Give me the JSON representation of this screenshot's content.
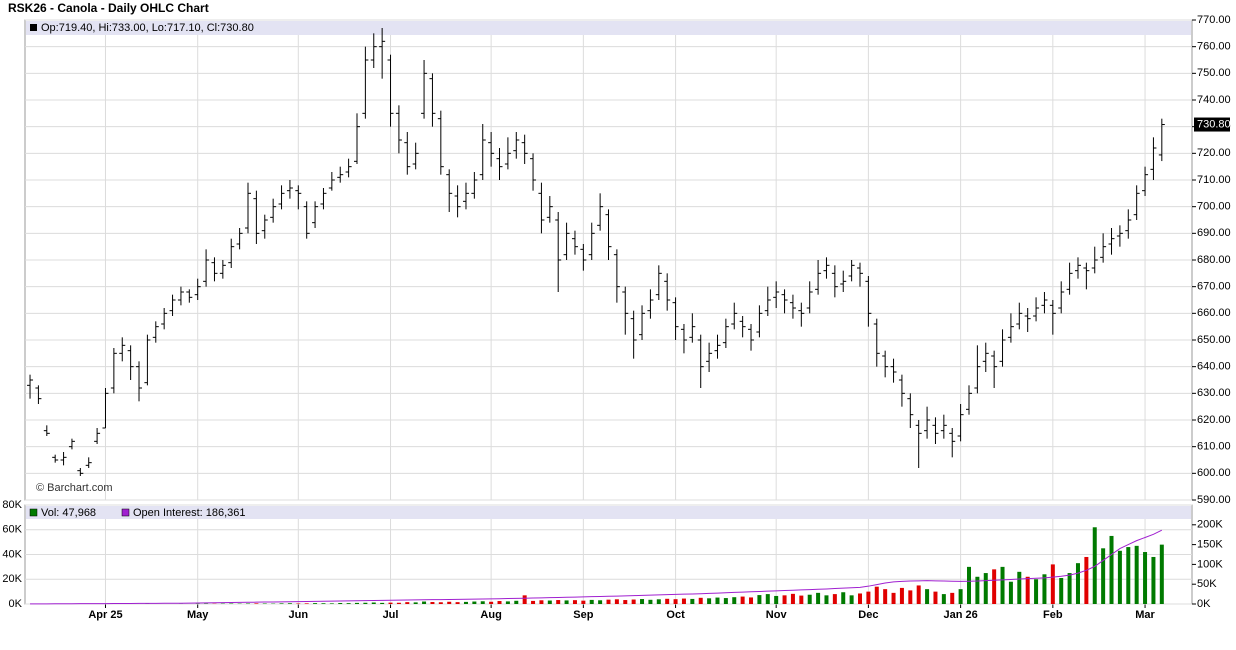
{
  "chart_data": [
    {
      "type": "ohlc",
      "title": "RSK26 - Canola - Daily OHLC Chart",
      "legend": "Op:719.40, Hi:733.00, Lo:717.10, Cl:730.80",
      "watermark": "© Barchart.com",
      "color": "#000000",
      "grid": true,
      "ylim": [
        590,
        770
      ],
      "yticks": [
        {
          "value": 590,
          "label": "590.00"
        },
        {
          "value": 600,
          "label": "600.00"
        },
        {
          "value": 610,
          "label": "610.00"
        },
        {
          "value": 620,
          "label": "620.00"
        },
        {
          "value": 630,
          "label": "630.00"
        },
        {
          "value": 640,
          "label": "640.00"
        },
        {
          "value": 650,
          "label": "650.00"
        },
        {
          "value": 660,
          "label": "660.00"
        },
        {
          "value": 670,
          "label": "670.00"
        },
        {
          "value": 680,
          "label": "680.00"
        },
        {
          "value": 690,
          "label": "690.00"
        },
        {
          "value": 700,
          "label": "700.00"
        },
        {
          "value": 710,
          "label": "710.00"
        },
        {
          "value": 720,
          "label": "720.00"
        },
        {
          "value": 730,
          "label": "730.00"
        },
        {
          "value": 740,
          "label": "740.00"
        },
        {
          "value": 750,
          "label": "750.00"
        },
        {
          "value": 760,
          "label": "760.00"
        },
        {
          "value": 770,
          "label": "770.00"
        }
      ],
      "last_price": {
        "value": 730.8,
        "label": "730.80"
      },
      "xlim": [
        -0.6,
        138.6
      ],
      "xticks": [
        {
          "value": 9,
          "label": "Apr 25"
        },
        {
          "value": 20,
          "label": "May"
        },
        {
          "value": 32,
          "label": "Jun"
        },
        {
          "value": 43,
          "label": "Jul"
        },
        {
          "value": 55,
          "label": "Aug"
        },
        {
          "value": 66,
          "label": "Sep"
        },
        {
          "value": 77,
          "label": "Oct"
        },
        {
          "value": 89,
          "label": "Nov"
        },
        {
          "value": 100,
          "label": "Dec"
        },
        {
          "value": 111,
          "label": "Jan 26"
        },
        {
          "value": 122,
          "label": "Feb"
        },
        {
          "value": 133,
          "label": "Mar"
        }
      ],
      "bars": [
        [
          633,
          637,
          628,
          635
        ],
        [
          632,
          633,
          626,
          628
        ],
        [
          616,
          618,
          614,
          615
        ],
        [
          606,
          607,
          604,
          605
        ],
        [
          605,
          608,
          603,
          606
        ],
        [
          610,
          613,
          609,
          612
        ],
        [
          601,
          602,
          599,
          600
        ],
        [
          603,
          606,
          602,
          604
        ],
        [
          612,
          617,
          611,
          615
        ],
        [
          617,
          632,
          617,
          630
        ],
        [
          632,
          647,
          630,
          645
        ],
        [
          645,
          651,
          642,
          648
        ],
        [
          646,
          648,
          635,
          640
        ],
        [
          640,
          642,
          627,
          632
        ],
        [
          634,
          652,
          633,
          650
        ],
        [
          651,
          657,
          649,
          655
        ],
        [
          656,
          662,
          654,
          660
        ],
        [
          661,
          667,
          659,
          665
        ],
        [
          665,
          670,
          663,
          668
        ],
        [
          668,
          669,
          664,
          666
        ],
        [
          667,
          673,
          665,
          670
        ],
        [
          672,
          684,
          670,
          680
        ],
        [
          679,
          681,
          672,
          675
        ],
        [
          675,
          680,
          673,
          678
        ],
        [
          679,
          688,
          677,
          685
        ],
        [
          686,
          692,
          684,
          690
        ],
        [
          692,
          709,
          690,
          705
        ],
        [
          703,
          706,
          686,
          690
        ],
        [
          691,
          697,
          688,
          695
        ],
        [
          696,
          703,
          694,
          700
        ],
        [
          701,
          708,
          699,
          705
        ],
        [
          706,
          710,
          703,
          707
        ],
        [
          706,
          708,
          699,
          705
        ],
        [
          700,
          702,
          688,
          690
        ],
        [
          694,
          702,
          692,
          700
        ],
        [
          701,
          707,
          699,
          705
        ],
        [
          707,
          713,
          706,
          710
        ],
        [
          711,
          715,
          709,
          712
        ],
        [
          713,
          718,
          711,
          715
        ],
        [
          717,
          735,
          716,
          730
        ],
        [
          735,
          760,
          733,
          755
        ],
        [
          755,
          765,
          752,
          760
        ],
        [
          760,
          767,
          748,
          762
        ],
        [
          755,
          757,
          730,
          735
        ],
        [
          735,
          738,
          720,
          725
        ],
        [
          724,
          728,
          712,
          715
        ],
        [
          716,
          724,
          714,
          720
        ],
        [
          735,
          755,
          733,
          750
        ],
        [
          748,
          750,
          730,
          735
        ],
        [
          733,
          736,
          712,
          715
        ],
        [
          712,
          714,
          698,
          705
        ],
        [
          704,
          708,
          696,
          700
        ],
        [
          702,
          709,
          699,
          705
        ],
        [
          705,
          713,
          703,
          710
        ],
        [
          712,
          731,
          710,
          725
        ],
        [
          724,
          728,
          715,
          720
        ],
        [
          718,
          722,
          710,
          715
        ],
        [
          716,
          726,
          714,
          720
        ],
        [
          721,
          728,
          718,
          725
        ],
        [
          724,
          727,
          716,
          720
        ],
        [
          718,
          720,
          706,
          710
        ],
        [
          705,
          709,
          690,
          695
        ],
        [
          696,
          704,
          694,
          700
        ],
        [
          695,
          698,
          668,
          680
        ],
        [
          682,
          694,
          680,
          690
        ],
        [
          688,
          691,
          682,
          685
        ],
        [
          684,
          686,
          676,
          680
        ],
        [
          682,
          694,
          680,
          690
        ],
        [
          693,
          705,
          691,
          700
        ],
        [
          697,
          699,
          680,
          685
        ],
        [
          682,
          684,
          664,
          670
        ],
        [
          668,
          670,
          652,
          660
        ],
        [
          658,
          661,
          643,
          650
        ],
        [
          652,
          663,
          650,
          660
        ],
        [
          661,
          669,
          658,
          665
        ],
        [
          667,
          678,
          665,
          675
        ],
        [
          672,
          675,
          661,
          665
        ],
        [
          664,
          666,
          650,
          655
        ],
        [
          654,
          656,
          645,
          650
        ],
        [
          651,
          660,
          649,
          655
        ],
        [
          650,
          652,
          632,
          640
        ],
        [
          642,
          649,
          638,
          645
        ],
        [
          646,
          652,
          643,
          648
        ],
        [
          649,
          658,
          647,
          655
        ],
        [
          656,
          664,
          654,
          660
        ],
        [
          657,
          659,
          651,
          655
        ],
        [
          654,
          656,
          646,
          650
        ],
        [
          653,
          663,
          651,
          660
        ],
        [
          661,
          670,
          659,
          665
        ],
        [
          666,
          672,
          662,
          668
        ],
        [
          667,
          669,
          660,
          665
        ],
        [
          664,
          667,
          658,
          662
        ],
        [
          661,
          664,
          655,
          660
        ],
        [
          662,
          672,
          660,
          668
        ],
        [
          669,
          680,
          667,
          675
        ],
        [
          676,
          681,
          673,
          678
        ],
        [
          675,
          678,
          666,
          670
        ],
        [
          671,
          676,
          668,
          672
        ],
        [
          674,
          680,
          672,
          678
        ],
        [
          677,
          679,
          670,
          675
        ],
        [
          672,
          674,
          655,
          660
        ],
        [
          656,
          658,
          640,
          645
        ],
        [
          644,
          646,
          636,
          640
        ],
        [
          640,
          643,
          634,
          638
        ],
        [
          635,
          637,
          625,
          630
        ],
        [
          628,
          630,
          617,
          622
        ],
        [
          618,
          620,
          602,
          615
        ],
        [
          616,
          625,
          613,
          620
        ],
        [
          618,
          621,
          611,
          615
        ],
        [
          616,
          622,
          613,
          618
        ],
        [
          615,
          617,
          606,
          612
        ],
        [
          614,
          626,
          612,
          622
        ],
        [
          624,
          633,
          622,
          630
        ],
        [
          632,
          648,
          630,
          640
        ],
        [
          642,
          649,
          638,
          645
        ],
        [
          644,
          646,
          632,
          640
        ],
        [
          642,
          654,
          640,
          650
        ],
        [
          651,
          660,
          649,
          655
        ],
        [
          656,
          664,
          654,
          660
        ],
        [
          659,
          662,
          653,
          658
        ],
        [
          659,
          666,
          657,
          662
        ],
        [
          663,
          668,
          660,
          665
        ],
        [
          663,
          665,
          652,
          660
        ],
        [
          662,
          672,
          660,
          668
        ],
        [
          669,
          679,
          667,
          675
        ],
        [
          676,
          681,
          673,
          678
        ],
        [
          677,
          679,
          669,
          676
        ],
        [
          677,
          685,
          675,
          680
        ],
        [
          681,
          690,
          679,
          685
        ],
        [
          686,
          692,
          682,
          688
        ],
        [
          689,
          693,
          685,
          690
        ],
        [
          691,
          699,
          688,
          695
        ],
        [
          697,
          708,
          695,
          705
        ],
        [
          706,
          715,
          704,
          712
        ],
        [
          714,
          726,
          710,
          722
        ],
        [
          719.4,
          733,
          717.1,
          730.8
        ]
      ]
    },
    {
      "type": "volume",
      "grid": true,
      "ylim": [
        0,
        80000
      ],
      "yticks": [
        {
          "value": 0,
          "label": "0K"
        },
        {
          "value": 20000,
          "label": "20K"
        },
        {
          "value": 40000,
          "label": "40K"
        },
        {
          "value": 60000,
          "label": "60K"
        },
        {
          "value": 80000,
          "label": "80K"
        }
      ],
      "y2lim": [
        0,
        250000
      ],
      "y2ticks": [
        {
          "value": 0,
          "label": "0K"
        },
        {
          "value": 50000,
          "label": "50K"
        },
        {
          "value": 100000,
          "label": "100K"
        },
        {
          "value": 150000,
          "label": "150K"
        },
        {
          "value": 200000,
          "label": "200K"
        }
      ],
      "series": [
        {
          "name": "Vol: 47,968",
          "color": "#007a00",
          "down_color": "#e00000",
          "values": [
            0,
            0,
            0,
            0,
            0,
            0,
            0,
            0,
            100,
            0,
            0,
            0,
            0,
            0,
            200,
            0,
            0,
            0,
            100,
            0,
            200,
            300,
            200,
            300,
            400,
            300,
            400,
            500,
            400,
            300,
            500,
            600,
            400,
            500,
            700,
            600,
            500,
            800,
            700,
            900,
            1000,
            1200,
            900,
            1100,
            1000,
            1500,
            1300,
            2000,
            1600,
            1400,
            1800,
            1500,
            1700,
            2000,
            2200,
            1800,
            2400,
            2100,
            2600,
            7000,
            2500,
            3000,
            2800,
            3200,
            2900,
            3100,
            2700,
            3300,
            3000,
            3500,
            3800,
            3200,
            3600,
            4000,
            3400,
            3800,
            4200,
            3900,
            4400,
            4100,
            5000,
            4600,
            5200,
            4800,
            5500,
            6000,
            5300,
            7200,
            8000,
            6500,
            7000,
            8200,
            6800,
            7500,
            9000,
            7000,
            8000,
            9500,
            7000,
            8500,
            10000,
            14000,
            12000,
            9000,
            13000,
            11000,
            15000,
            12000,
            10000,
            8000,
            9000,
            12000,
            30000,
            22000,
            25000,
            28000,
            30000,
            18000,
            26000,
            22000,
            20000,
            24000,
            32000,
            21000,
            25000,
            33000,
            38000,
            62000,
            45000,
            55000,
            43000,
            46000,
            47000,
            42000,
            38000,
            47968
          ]
        },
        {
          "name": "Open Interest: 186,361",
          "color": "#a020d0",
          "axis": "y2",
          "values": [
            200,
            300,
            400,
            500,
            600,
            700,
            800,
            900,
            1000,
            1100,
            1200,
            1300,
            1400,
            1500,
            1600,
            1700,
            1800,
            1900,
            2000,
            2100,
            2500,
            2800,
            3100,
            3400,
            3700,
            4000,
            4300,
            4600,
            4900,
            5200,
            5500,
            5800,
            6100,
            6400,
            6700,
            7000,
            7300,
            7600,
            7900,
            8200,
            8500,
            8800,
            9100,
            9400,
            9700,
            10000,
            10300,
            10600,
            10900,
            11200,
            11500,
            11800,
            12100,
            12400,
            12700,
            13000,
            13400,
            13800,
            14200,
            14600,
            15000,
            15500,
            16000,
            16500,
            17000,
            17500,
            18000,
            18500,
            19000,
            19500,
            20000,
            20600,
            21200,
            21800,
            22400,
            23000,
            23600,
            24200,
            24800,
            25400,
            26000,
            26800,
            27600,
            28400,
            29200,
            30000,
            30800,
            31600,
            32400,
            33200,
            34000,
            34800,
            35600,
            36400,
            37200,
            38000,
            39000,
            40000,
            41000,
            42000,
            45000,
            49000,
            53000,
            56000,
            57000,
            58000,
            58500,
            59000,
            58500,
            58000,
            57500,
            57000,
            57500,
            58000,
            59000,
            60000,
            61000,
            62000,
            63000,
            64000,
            65000,
            66000,
            68000,
            70000,
            73000,
            78000,
            85000,
            95000,
            110000,
            125000,
            140000,
            150000,
            160000,
            168000,
            176000,
            186361
          ]
        }
      ]
    }
  ]
}
